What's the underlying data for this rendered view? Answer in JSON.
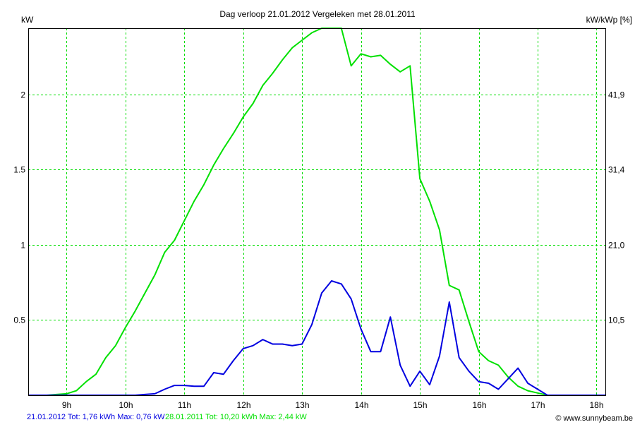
{
  "chart_data": {
    "type": "line",
    "title": "Dag  verloop 21.01.2012   Vergeleken met 28.01.2011",
    "ylabel": "kW",
    "y2label": "kW/kWp [%]",
    "xlabel": "",
    "x_start_hour": 8.3333,
    "x_step_minutes": 10,
    "xlim": [
      8.35,
      18.15
    ],
    "ylim": [
      0,
      2.44
    ],
    "grid": true,
    "x_ticks": [
      9,
      10,
      11,
      12,
      13,
      14,
      15,
      16,
      17,
      18
    ],
    "x_tick_labels": [
      "9h",
      "10h",
      "11h",
      "12h",
      "13h",
      "14h",
      "15h",
      "16h",
      "17h",
      "18h"
    ],
    "y_ticks": [
      0.5,
      1,
      1.5,
      2
    ],
    "y_tick_labels": [
      "0.5",
      "1",
      "1.5",
      "2"
    ],
    "y2_tick_labels": [
      "10,5",
      "21,0",
      "31,4",
      "41,9"
    ],
    "series": [
      {
        "name": "28.01.2011",
        "color": "#00e000",
        "values": [
          0,
          0,
          0,
          0.005,
          0.01,
          0.03,
          0.09,
          0.14,
          0.25,
          0.33,
          0.45,
          0.56,
          0.68,
          0.8,
          0.95,
          1.03,
          1.16,
          1.29,
          1.4,
          1.53,
          1.64,
          1.74,
          1.85,
          1.94,
          2.06,
          2.14,
          2.23,
          2.31,
          2.36,
          2.41,
          2.44,
          2.44,
          2.44,
          2.19,
          2.27,
          2.25,
          2.26,
          2.2,
          2.15,
          2.19,
          1.44,
          1.29,
          1.1,
          0.73,
          0.7,
          0.49,
          0.29,
          0.23,
          0.2,
          0.12,
          0.06,
          0.03,
          0.015,
          0,
          0,
          0,
          0,
          0,
          0,
          0
        ]
      },
      {
        "name": "21.01.2012",
        "color": "#0000e0",
        "values": [
          0,
          0,
          0,
          0,
          0,
          0,
          0,
          0,
          0,
          0,
          0,
          0,
          0.005,
          0.01,
          0.04,
          0.065,
          0.065,
          0.06,
          0.06,
          0.15,
          0.14,
          0.23,
          0.31,
          0.33,
          0.37,
          0.34,
          0.34,
          0.33,
          0.34,
          0.47,
          0.68,
          0.76,
          0.74,
          0.64,
          0.44,
          0.29,
          0.29,
          0.52,
          0.2,
          0.06,
          0.16,
          0.07,
          0.26,
          0.62,
          0.25,
          0.16,
          0.09,
          0.08,
          0.04,
          0.11,
          0.18,
          0.08,
          0.04,
          0,
          0,
          0,
          0,
          0,
          0,
          0
        ]
      }
    ],
    "legend": {
      "s1_date": "21.01.2012",
      "s1_text": "Tot: 1,76 kWh Max: 0,76 kW",
      "s2_date": "28.01.2011",
      "s2_text": "Tot: 10,20 kWh Max: 2,44 kW"
    },
    "copyright": "© www.sunnybeam.be"
  }
}
